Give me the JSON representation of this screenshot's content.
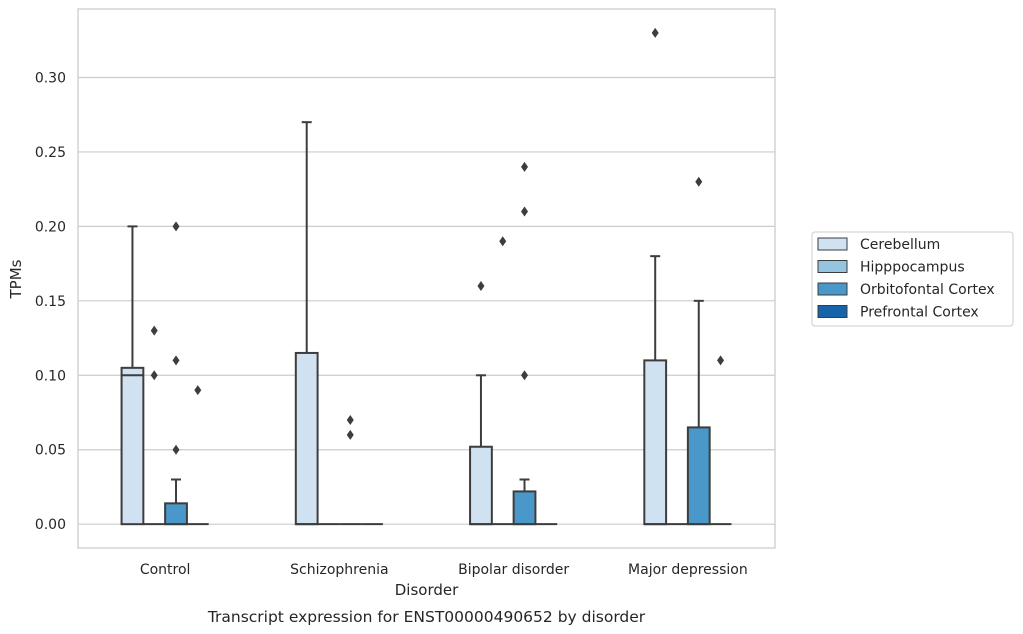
{
  "chart_data": {
    "type": "box",
    "caption": "Transcript expression for ENST00000490652 by disorder",
    "xlabel": "Disorder",
    "ylabel": "TPMs",
    "ylim": [
      -0.016,
      0.346
    ],
    "yticks": [
      "0.00",
      "0.05",
      "0.10",
      "0.15",
      "0.20",
      "0.25",
      "0.30"
    ],
    "grid": true,
    "legend_position": "right",
    "categories": [
      "Control",
      "Schizophrenia",
      "Bipolar disorder",
      "Major depression"
    ],
    "series": [
      {
        "name": "Cerebellum",
        "color": "#d0e1f2",
        "boxes": [
          {
            "min": 0.0,
            "q1": 0.0,
            "median": 0.1,
            "q3": 0.105,
            "max": 0.2,
            "outliers": []
          },
          {
            "min": 0.0,
            "q1": 0.0,
            "median": 0.0,
            "q3": 0.115,
            "max": 0.27,
            "outliers": []
          },
          {
            "min": 0.0,
            "q1": 0.0,
            "median": 0.0,
            "q3": 0.052,
            "max": 0.1,
            "outliers": [
              0.16
            ]
          },
          {
            "min": 0.0,
            "q1": 0.0,
            "median": 0.0,
            "q3": 0.11,
            "max": 0.18,
            "outliers": [
              0.33
            ]
          }
        ]
      },
      {
        "name": "Hipppocampus",
        "color": "#94c4df",
        "boxes": [
          {
            "min": 0.0,
            "q1": 0.0,
            "median": 0.0,
            "q3": 0.0,
            "max": 0.0,
            "outliers": [
              0.1,
              0.13
            ]
          },
          {
            "min": 0.0,
            "q1": 0.0,
            "median": 0.0,
            "q3": 0.0,
            "max": 0.0,
            "outliers": []
          },
          {
            "min": 0.0,
            "q1": 0.0,
            "median": 0.0,
            "q3": 0.0,
            "max": 0.0,
            "outliers": [
              0.19
            ]
          },
          {
            "min": 0.0,
            "q1": 0.0,
            "median": 0.0,
            "q3": 0.0,
            "max": 0.0,
            "outliers": []
          }
        ]
      },
      {
        "name": "Orbitofontal Cortex",
        "color": "#4a98c9",
        "boxes": [
          {
            "min": 0.0,
            "q1": 0.0,
            "median": 0.0,
            "q3": 0.014,
            "max": 0.03,
            "outliers": [
              0.05,
              0.11,
              0.2
            ]
          },
          {
            "min": 0.0,
            "q1": 0.0,
            "median": 0.0,
            "q3": 0.0,
            "max": 0.0,
            "outliers": [
              0.06,
              0.07
            ]
          },
          {
            "min": 0.0,
            "q1": 0.0,
            "median": 0.0,
            "q3": 0.022,
            "max": 0.03,
            "outliers": [
              0.1,
              0.21,
              0.24
            ]
          },
          {
            "min": 0.0,
            "q1": 0.0,
            "median": 0.0,
            "q3": 0.065,
            "max": 0.15,
            "outliers": [
              0.23
            ]
          }
        ]
      },
      {
        "name": "Prefrontal Cortex",
        "color": "#1764ab",
        "boxes": [
          {
            "min": 0.0,
            "q1": 0.0,
            "median": 0.0,
            "q3": 0.0,
            "max": 0.0,
            "outliers": [
              0.09
            ]
          },
          {
            "min": 0.0,
            "q1": 0.0,
            "median": 0.0,
            "q3": 0.0,
            "max": 0.0,
            "outliers": []
          },
          {
            "min": 0.0,
            "q1": 0.0,
            "median": 0.0,
            "q3": 0.0,
            "max": 0.0,
            "outliers": []
          },
          {
            "min": 0.0,
            "q1": 0.0,
            "median": 0.0,
            "q3": 0.0,
            "max": 0.0,
            "outliers": [
              0.11
            ]
          }
        ]
      }
    ]
  }
}
